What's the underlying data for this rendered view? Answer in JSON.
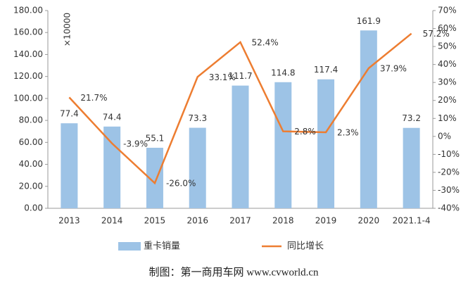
{
  "chart_data": {
    "type": "bar-line",
    "y_unit_label": "×10000",
    "footer": "制图：第一商用车网 www.cvworld.cn",
    "categories": [
      "2013",
      "2014",
      "2015",
      "2016",
      "2017",
      "2018",
      "2019",
      "2020",
      "2021.1-4"
    ],
    "series": [
      {
        "name": "重卡销量",
        "type": "bar",
        "color": "#9dc3e6",
        "values": [
          77.4,
          74.4,
          55.1,
          73.3,
          111.7,
          114.8,
          117.4,
          161.9,
          73.2
        ]
      },
      {
        "name": "同比增长",
        "type": "line",
        "axis": "y2",
        "color": "#ed7d31",
        "values": [
          21.7,
          -3.9,
          -26.0,
          33.1,
          52.4,
          2.8,
          2.3,
          37.9,
          57.2
        ],
        "value_labels": [
          "21.7%",
          "-3.9%",
          "-26.0%",
          "33.1%",
          "52.4%",
          "2.8%",
          "2.3%",
          "37.9%",
          "57.2%"
        ]
      }
    ],
    "ylim": [
      0,
      180
    ],
    "yticks": [
      {
        "value": 0,
        "label": "0.00"
      },
      {
        "value": 20,
        "label": "20.00"
      },
      {
        "value": 40,
        "label": "40.00"
      },
      {
        "value": 60,
        "label": "60.00"
      },
      {
        "value": 80,
        "label": "80.00"
      },
      {
        "value": 100,
        "label": "100.00"
      },
      {
        "value": 120,
        "label": "120.00"
      },
      {
        "value": 140,
        "label": "140.00"
      },
      {
        "value": 160,
        "label": "160.00"
      },
      {
        "value": 180,
        "label": "180.00"
      }
    ],
    "y2lim": [
      -40,
      70
    ],
    "y2ticks": [
      {
        "value": -40,
        "label": "-40%"
      },
      {
        "value": -30,
        "label": "-30%"
      },
      {
        "value": -20,
        "label": "-20%"
      },
      {
        "value": -10,
        "label": "-10%"
      },
      {
        "value": 0,
        "label": "0%"
      },
      {
        "value": 10,
        "label": "10%"
      },
      {
        "value": 20,
        "label": "20%"
      },
      {
        "value": 30,
        "label": "30%"
      },
      {
        "value": 40,
        "label": "40%"
      },
      {
        "value": 50,
        "label": "50%"
      },
      {
        "value": 60,
        "label": "60%"
      },
      {
        "value": 70,
        "label": "70%"
      }
    ]
  }
}
